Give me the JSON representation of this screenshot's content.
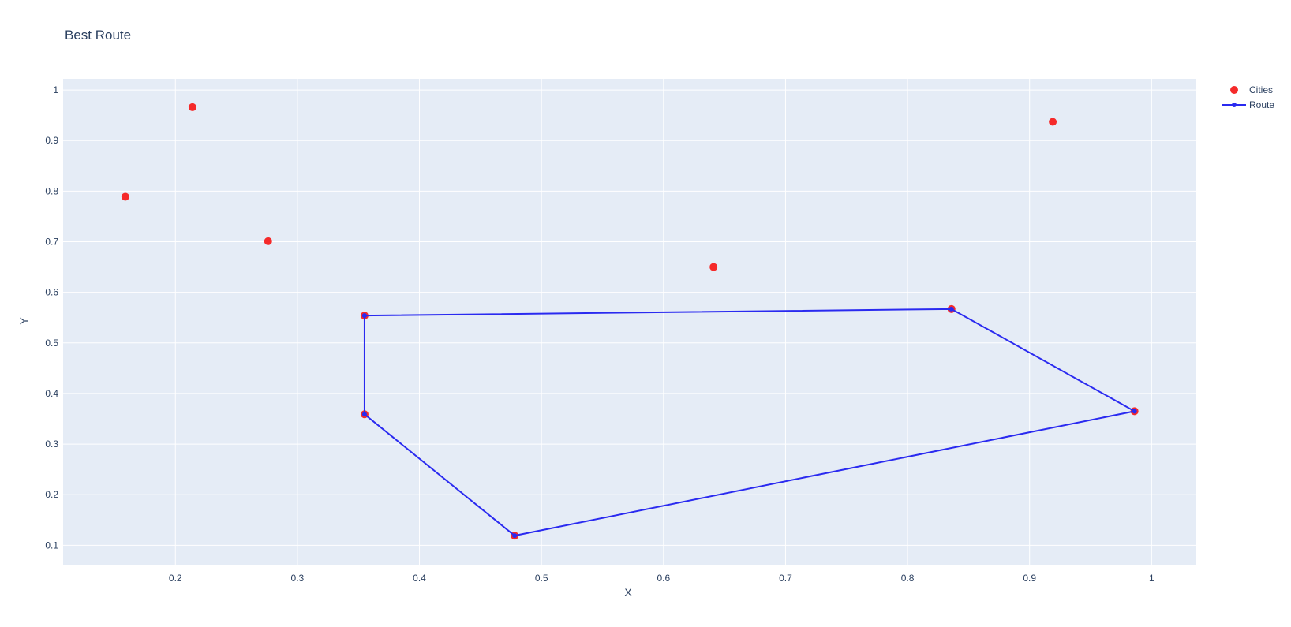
{
  "chart_data": {
    "type": "scatter",
    "title": "Best Route",
    "xlabel": "X",
    "ylabel": "Y",
    "xlim": [
      0.108,
      1.036
    ],
    "ylim": [
      0.06,
      1.022
    ],
    "xticks": [
      0.2,
      0.3,
      0.4,
      0.5,
      0.6,
      0.7,
      0.8,
      0.9,
      1
    ],
    "xtick_labels": [
      "0.2",
      "0.3",
      "0.4",
      "0.5",
      "0.6",
      "0.7",
      "0.8",
      "0.9",
      "1"
    ],
    "yticks": [
      0.1,
      0.2,
      0.3,
      0.4,
      0.5,
      0.6,
      0.7,
      0.8,
      0.9,
      1
    ],
    "ytick_labels": [
      "0.1",
      "0.2",
      "0.3",
      "0.4",
      "0.5",
      "0.6",
      "0.7",
      "0.8",
      "0.9",
      "1"
    ],
    "grid": true,
    "legend_position": "top-right",
    "series": [
      {
        "name": "Cities",
        "mode": "markers",
        "color": "#f52a2a",
        "x": [
          0.159,
          0.214,
          0.276,
          0.641,
          0.919,
          0.355,
          0.355,
          0.478,
          0.836,
          0.986
        ],
        "y": [
          0.789,
          0.966,
          0.701,
          0.65,
          0.937,
          0.554,
          0.359,
          0.119,
          0.567,
          0.365
        ]
      },
      {
        "name": "Route",
        "mode": "lines+markers",
        "color": "#2a2af0",
        "x": [
          0.355,
          0.836,
          0.986,
          0.478,
          0.355,
          0.355
        ],
        "y": [
          0.554,
          0.567,
          0.365,
          0.119,
          0.359,
          0.554
        ]
      }
    ]
  },
  "colors": {
    "plot_background": "#e5ecf6",
    "grid": "#ffffff",
    "text": "#2a3f5f"
  }
}
